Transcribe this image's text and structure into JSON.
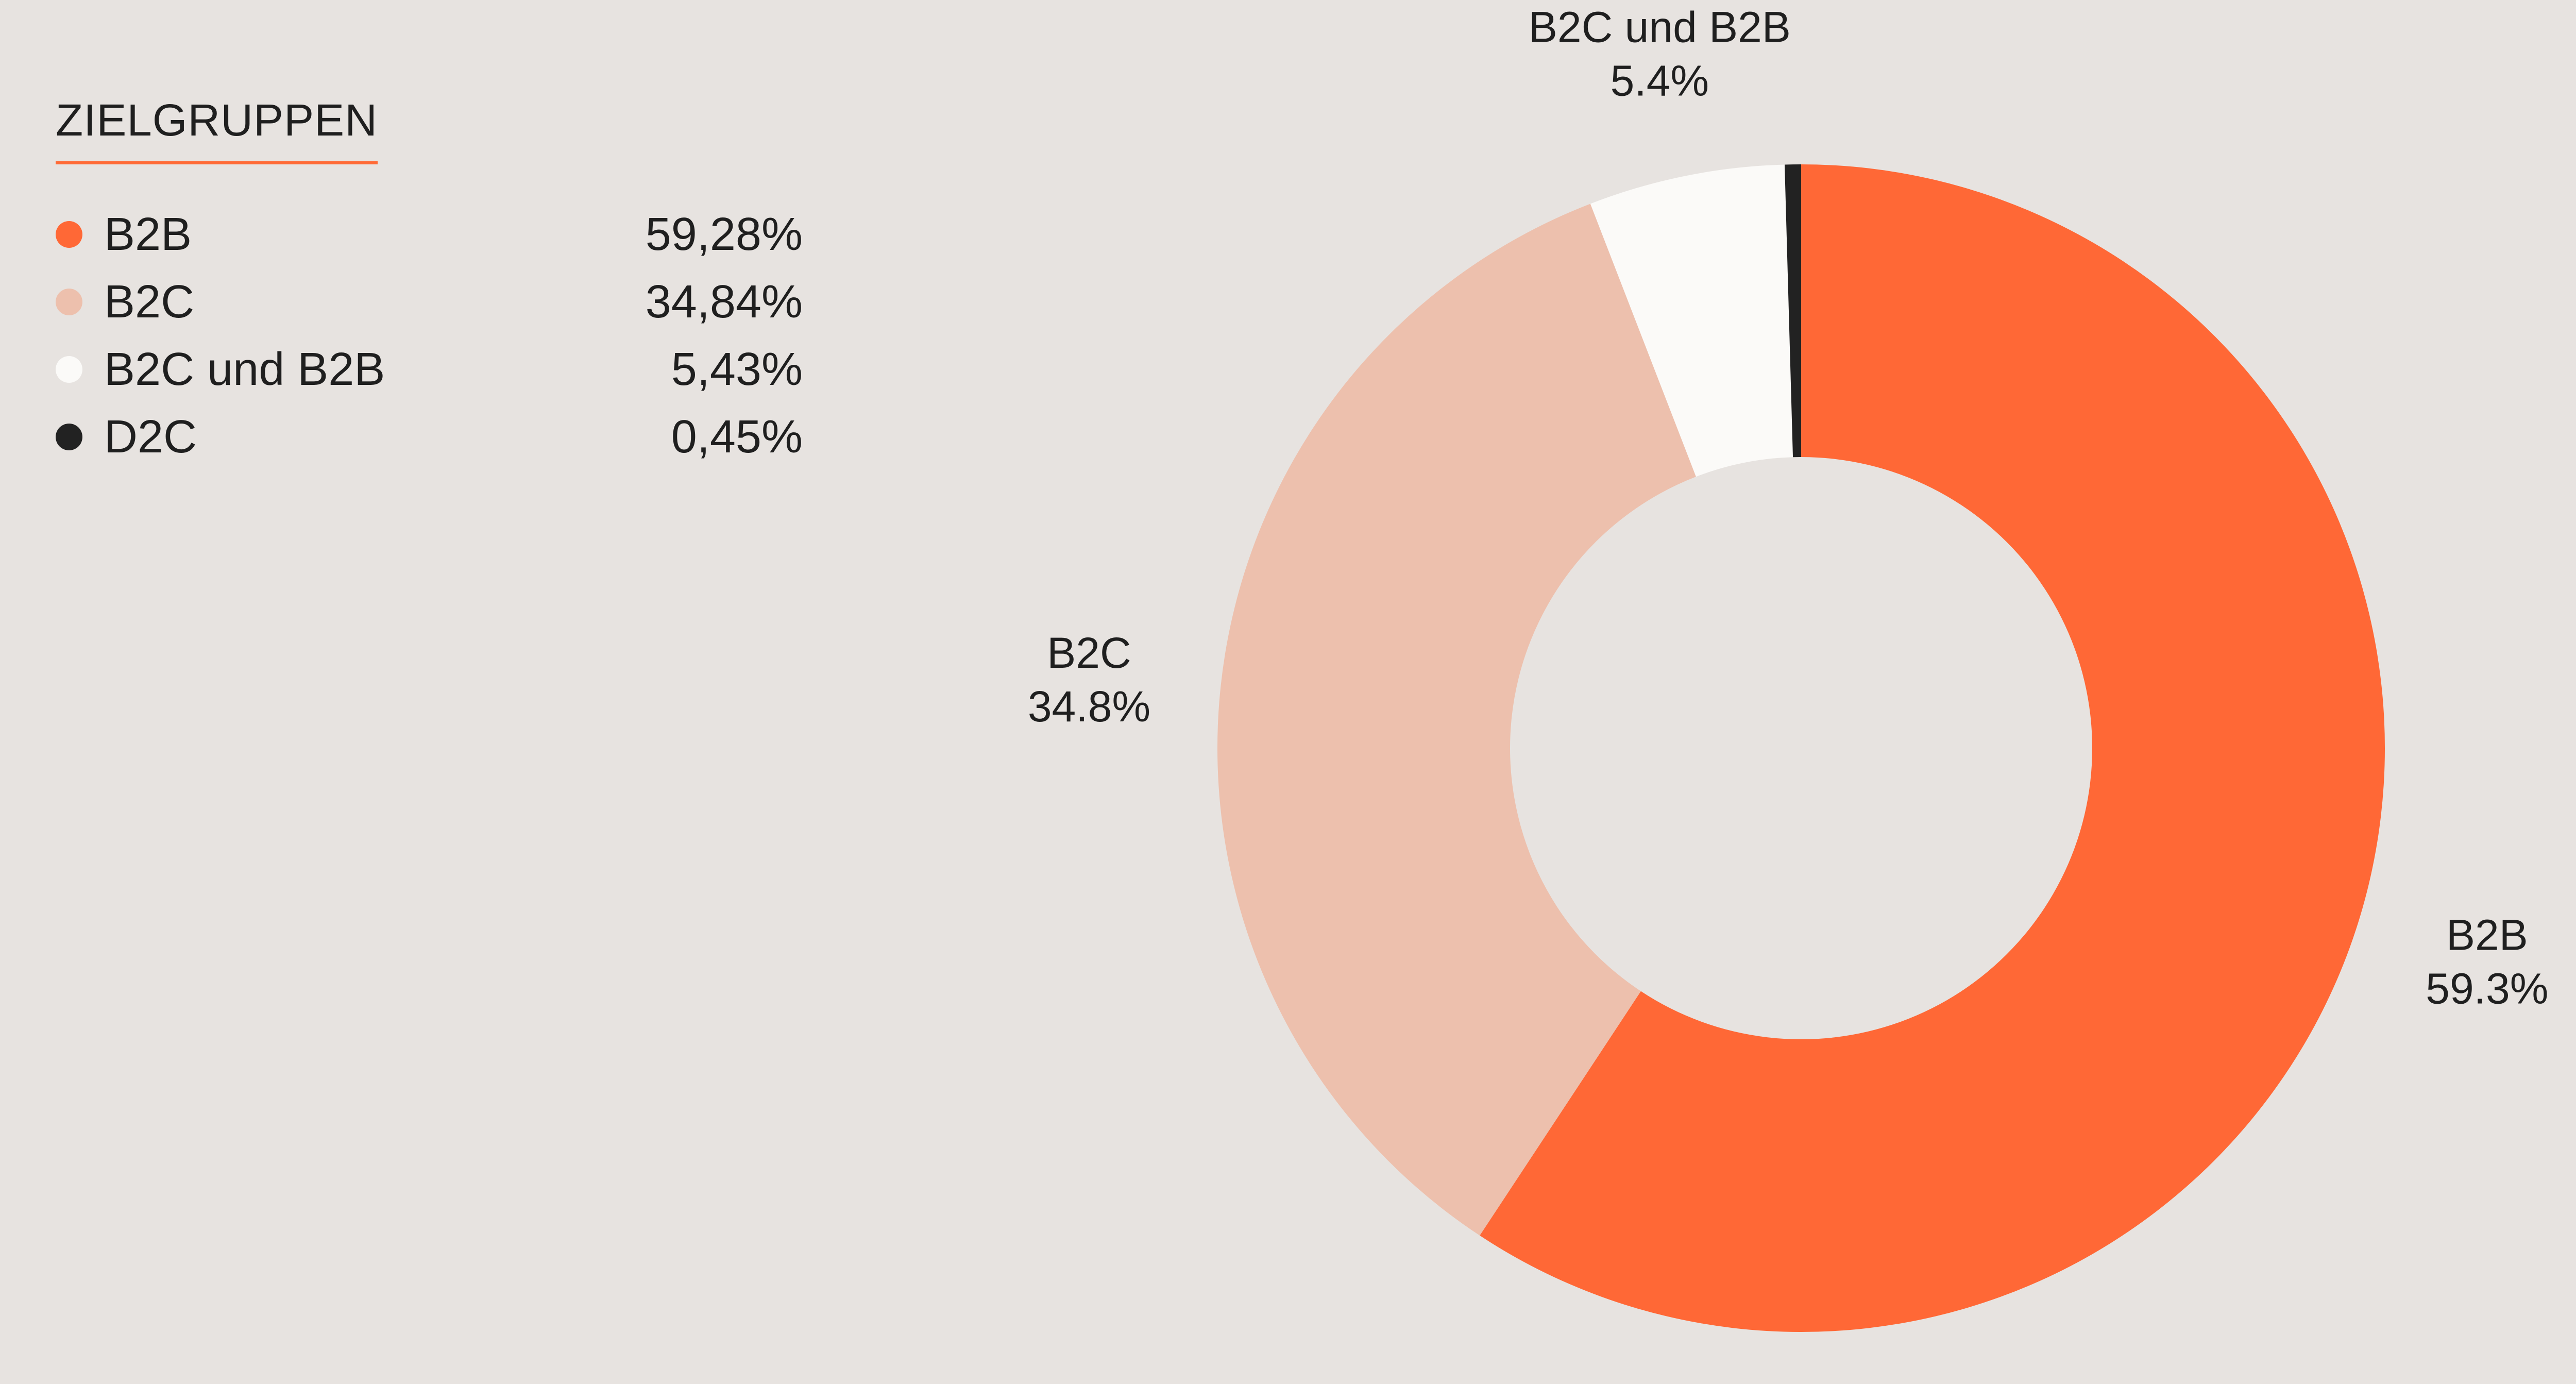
{
  "legend": {
    "title": "ZIELGRUPPEN",
    "items": [
      {
        "label": "B2B",
        "value": "59,28%",
        "color": "#ff6836"
      },
      {
        "label": "B2C",
        "value": "34,84%",
        "color": "#edc0ad"
      },
      {
        "label": "B2C und B2B",
        "value": "5,43%",
        "color": "#fbfaf8"
      },
      {
        "label": "D2C",
        "value": "0,45%",
        "color": "#222222"
      }
    ]
  },
  "chart_data": {
    "type": "pie",
    "subtype": "donut",
    "title": "",
    "categories": [
      "B2B",
      "B2C",
      "B2C und B2B",
      "D2C"
    ],
    "values": [
      59.28,
      34.84,
      5.43,
      0.45
    ],
    "colors": [
      "#ff6836",
      "#edc0ad",
      "#fbfaf8",
      "#222222"
    ],
    "labels": [
      {
        "name": "B2B",
        "value": "59.3%"
      },
      {
        "name": "B2C",
        "value": "34.8%"
      },
      {
        "name": "B2C und B2B",
        "value": "5.4%"
      },
      null
    ],
    "legend_position": "left",
    "start_angle": "top",
    "direction": "clockwise"
  }
}
